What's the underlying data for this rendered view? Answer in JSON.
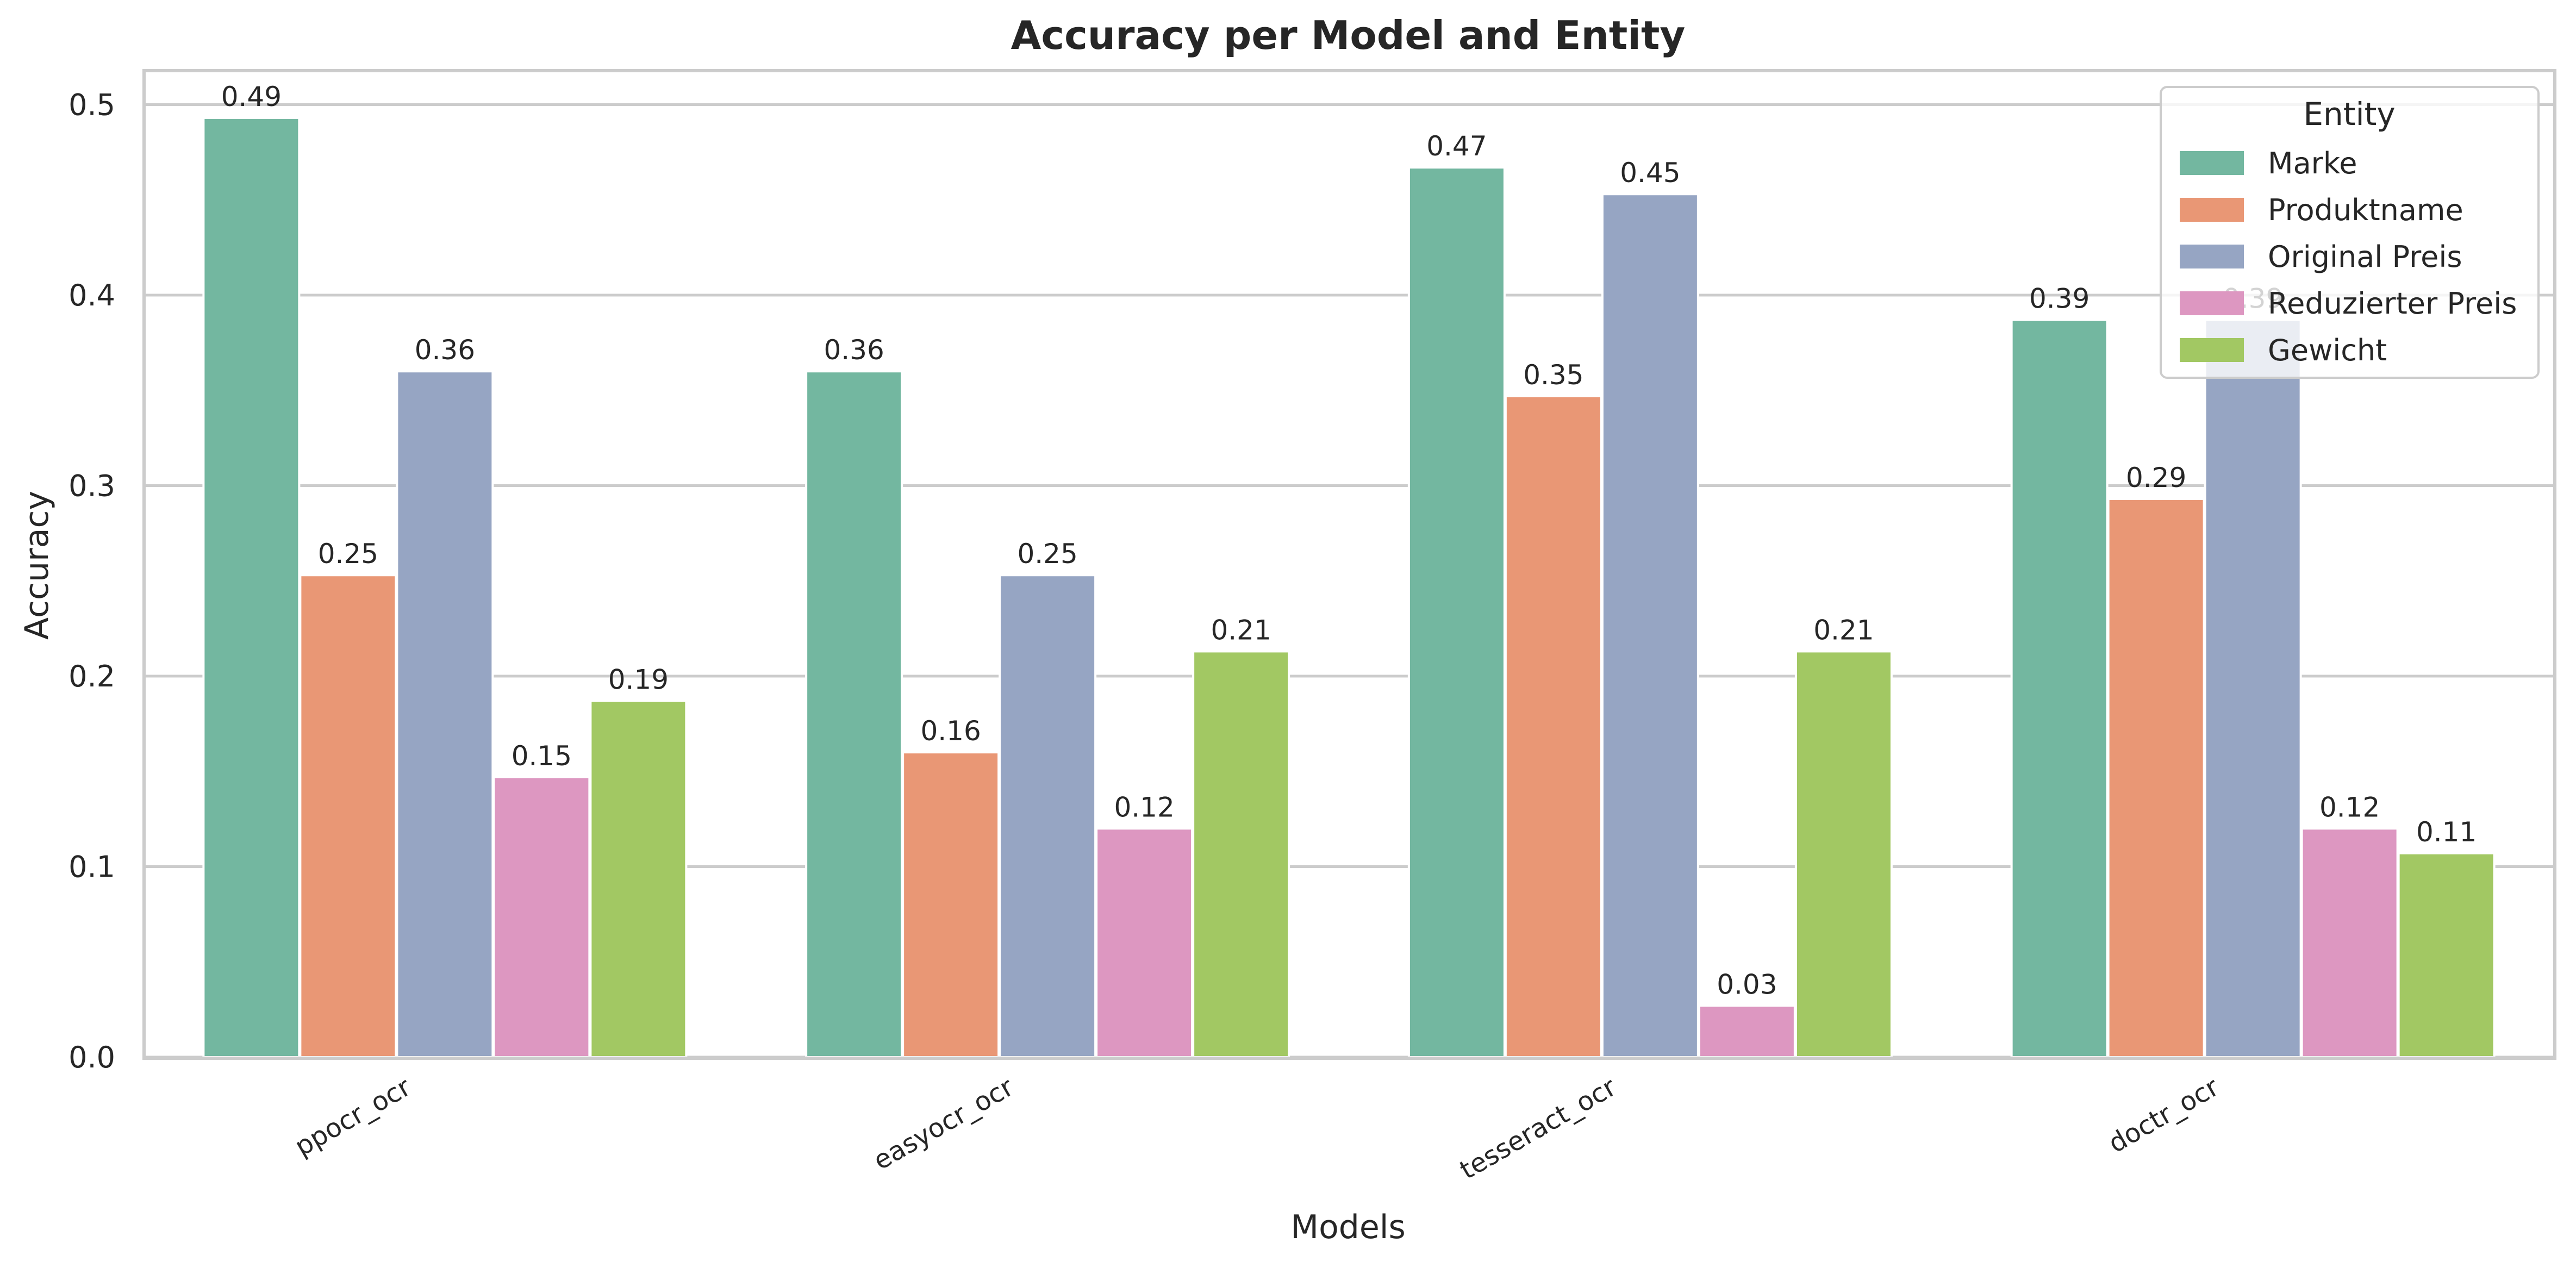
{
  "chart_data": {
    "type": "bar",
    "title": "Accuracy per Model and Entity",
    "xlabel": "Models",
    "ylabel": "Accuracy",
    "ylim": [
      0,
      0.52
    ],
    "yticks": [
      "0.0",
      "0.1",
      "0.2",
      "0.3",
      "0.4",
      "0.5"
    ],
    "grid": true,
    "categories": [
      "ppocr_ocr",
      "easyocr_ocr",
      "tesseract_ocr",
      "doctr_ocr"
    ],
    "legend": {
      "title": "Entity",
      "placement": "top-right"
    },
    "series": [
      {
        "name": "Marke",
        "color": "#73b7a0",
        "values": [
          0.493,
          0.36,
          0.467,
          0.387
        ],
        "labels": [
          "0.49",
          "0.36",
          "0.47",
          "0.39"
        ]
      },
      {
        "name": "Produktname",
        "color": "#e99775",
        "values": [
          0.253,
          0.16,
          0.347,
          0.293
        ],
        "labels": [
          "0.25",
          "0.16",
          "0.35",
          "0.29"
        ]
      },
      {
        "name": "Original Preis",
        "color": "#96a5c3",
        "values": [
          0.36,
          0.253,
          0.453,
          0.387
        ],
        "labels": [
          "0.36",
          "0.25",
          "0.45",
          "0.39"
        ]
      },
      {
        "name": "Reduzierter Preis",
        "color": "#dd97c1",
        "values": [
          0.147,
          0.12,
          0.027,
          0.12
        ],
        "labels": [
          "0.15",
          "0.12",
          "0.03",
          "0.12"
        ]
      },
      {
        "name": "Gewicht",
        "color": "#a2c863",
        "values": [
          0.187,
          0.213,
          0.213,
          0.107
        ],
        "labels": [
          "0.19",
          "0.21",
          "0.21",
          "0.11"
        ]
      }
    ]
  }
}
